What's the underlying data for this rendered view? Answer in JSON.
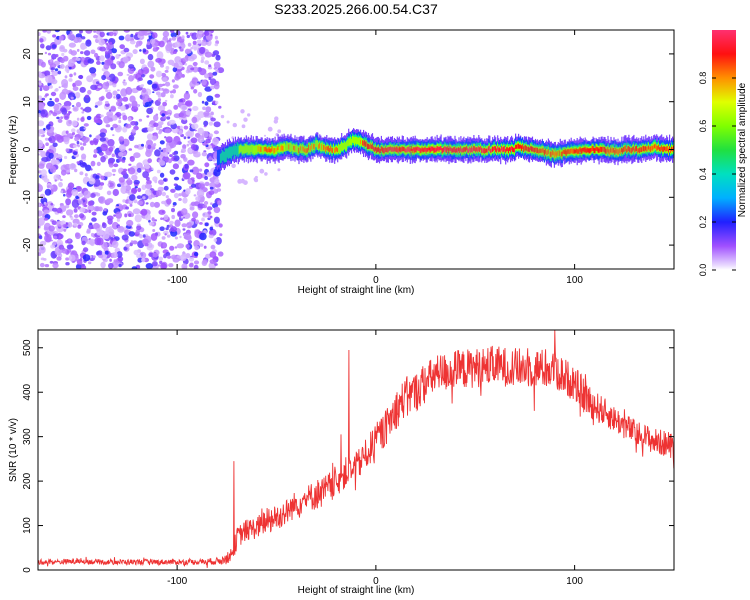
{
  "figure": {
    "title": "S233.2025.266.00.54.C37"
  },
  "chart_data": [
    {
      "type": "heatmap",
      "title": "S233.2025.266.00.54.C37",
      "xlabel": "Height of straight line (km)",
      "ylabel": "Frequency (Hz)",
      "xlim": [
        -170,
        150
      ],
      "ylim": [
        -25,
        25
      ],
      "xticks": [
        -100,
        0,
        100
      ],
      "yticks": [
        20,
        10,
        0,
        -10,
        -20
      ],
      "xtick_labels": [
        "-100",
        "0",
        "100"
      ],
      "ytick_labels": [
        "20",
        "10",
        "0",
        "-10",
        "-20"
      ],
      "colorbar": {
        "label": "Normalized spectral amplitude",
        "range": [
          0.0,
          1.0
        ],
        "ticks": [
          0.0,
          0.2,
          0.4,
          0.6,
          0.8
        ],
        "tick_labels": [
          "0.0",
          "0.2",
          "0.4",
          "0.6",
          "0.8"
        ]
      },
      "noise_region": {
        "x": [
          -170,
          -78
        ],
        "amplitude": 0.15
      },
      "ridge": {
        "x": [
          -80,
          -75,
          -70,
          -65,
          -60,
          -55,
          -50,
          -45,
          -40,
          -35,
          -30,
          -25,
          -20,
          -15,
          -12,
          -10,
          -8,
          -5,
          0,
          10,
          20,
          30,
          40,
          50,
          60,
          68,
          72,
          78,
          85,
          90,
          95,
          100,
          105,
          110,
          115,
          120,
          125,
          130,
          135,
          140,
          145,
          150
        ],
        "frequency": [
          -2,
          -1,
          0,
          0,
          0,
          0,
          0,
          0.5,
          0,
          0,
          1,
          0,
          0,
          1,
          2,
          2,
          1.5,
          1,
          0,
          0,
          0,
          0,
          0,
          0,
          0,
          0,
          0.5,
          0,
          -0.5,
          -1,
          -0.5,
          -0.5,
          0,
          0,
          0,
          -0.5,
          0,
          0,
          0,
          0.5,
          0,
          0
        ],
        "amplitude": [
          0.3,
          0.45,
          0.55,
          0.75,
          0.8,
          0.85,
          0.85,
          0.8,
          0.85,
          0.85,
          0.8,
          0.85,
          0.85,
          0.7,
          0.6,
          0.65,
          0.85,
          0.9,
          0.95,
          0.97,
          0.98,
          0.98,
          0.98,
          0.98,
          0.98,
          0.95,
          0.9,
          0.92,
          0.88,
          0.85,
          0.88,
          0.9,
          0.92,
          0.9,
          0.9,
          0.85,
          0.9,
          0.92,
          0.9,
          0.85,
          0.9,
          0.88
        ]
      }
    },
    {
      "type": "line",
      "xlabel": "Height of straight line (km)",
      "ylabel": "SNR (10 * v/v)",
      "xlim": [
        -170,
        150
      ],
      "ylim": [
        0,
        540
      ],
      "xticks": [
        -100,
        0,
        100
      ],
      "yticks": [
        0,
        100,
        200,
        300,
        400,
        500
      ],
      "xtick_labels": [
        "-100",
        "0",
        "100"
      ],
      "ytick_labels": [
        "0",
        "100",
        "200",
        "300",
        "400",
        "500"
      ],
      "series": [
        {
          "name": "SNR",
          "color": "#ee3333",
          "x": [
            -170,
            -160,
            -150,
            -140,
            -130,
            -120,
            -110,
            -100,
            -90,
            -80,
            -75,
            -72,
            -70,
            -68,
            -65,
            -60,
            -55,
            -50,
            -45,
            -40,
            -35,
            -30,
            -25,
            -20,
            -15,
            -10,
            -5,
            0,
            5,
            10,
            15,
            20,
            25,
            30,
            40,
            50,
            60,
            70,
            80,
            90,
            100,
            105,
            110,
            120,
            130,
            140,
            150
          ],
          "values": [
            18,
            18,
            20,
            18,
            18,
            18,
            18,
            18,
            18,
            20,
            25,
            40,
            70,
            80,
            90,
            95,
            110,
            120,
            130,
            150,
            160,
            170,
            180,
            200,
            220,
            230,
            260,
            290,
            320,
            360,
            390,
            400,
            420,
            440,
            450,
            455,
            460,
            455,
            455,
            450,
            420,
            390,
            370,
            340,
            310,
            290,
            280
          ],
          "noise": [
            6,
            6,
            6,
            6,
            6,
            6,
            6,
            6,
            6,
            8,
            12,
            18,
            25,
            25,
            25,
            25,
            30,
            30,
            30,
            30,
            30,
            35,
            35,
            35,
            35,
            35,
            35,
            40,
            40,
            45,
            45,
            45,
            45,
            45,
            45,
            45,
            45,
            45,
            45,
            45,
            40,
            40,
            35,
            30,
            30,
            30,
            30
          ],
          "spikes": [
            {
              "x": -71.5,
              "value": 245
            },
            {
              "x": -17.5,
              "value": 305
            },
            {
              "x": -13.5,
              "value": 495
            },
            {
              "x": 90,
              "value": 540
            }
          ]
        }
      ]
    }
  ]
}
